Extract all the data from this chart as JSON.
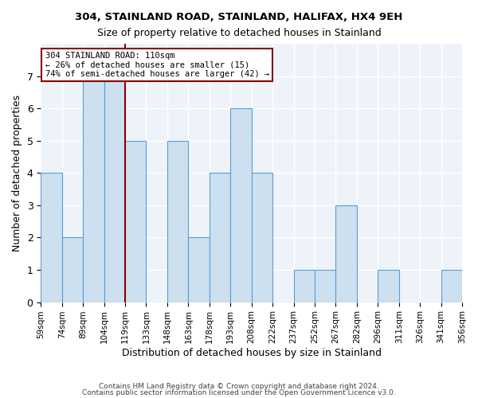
{
  "title1": "304, STAINLAND ROAD, STAINLAND, HALIFAX, HX4 9EH",
  "title2": "Size of property relative to detached houses in Stainland",
  "xlabel": "Distribution of detached houses by size in Stainland",
  "ylabel": "Number of detached properties",
  "bin_labels": [
    "59sqm",
    "74sqm",
    "89sqm",
    "104sqm",
    "119sqm",
    "133sqm",
    "148sqm",
    "163sqm",
    "178sqm",
    "193sqm",
    "208sqm",
    "222sqm",
    "237sqm",
    "252sqm",
    "267sqm",
    "282sqm",
    "296sqm",
    "311sqm",
    "326sqm",
    "341sqm",
    "356sqm"
  ],
  "bar_values": [
    4,
    2,
    7,
    7,
    5,
    0,
    5,
    2,
    4,
    6,
    4,
    0,
    1,
    1,
    3,
    0,
    1,
    0,
    0,
    1
  ],
  "bar_color": "#cce0f0",
  "bar_edgecolor": "#5b9bd5",
  "bg_color": "#eef3f9",
  "grid_color": "#ffffff",
  "vline_x": 3.5,
  "vline_color": "#8b0000",
  "annotation_text": "304 STAINLAND ROAD: 110sqm\n← 26% of detached houses are smaller (15)\n74% of semi-detached houses are larger (42) →",
  "annotation_box_color": "#8b0000",
  "footer1": "Contains HM Land Registry data © Crown copyright and database right 2024.",
  "footer2": "Contains public sector information licensed under the Open Government Licence v3.0.",
  "ylim": [
    0,
    8
  ],
  "yticks": [
    0,
    1,
    2,
    3,
    4,
    5,
    6,
    7,
    8
  ]
}
